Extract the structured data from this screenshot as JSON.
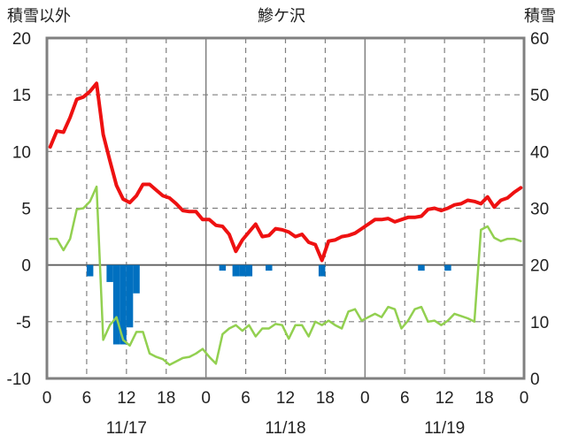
{
  "chart_data": {
    "type": "line",
    "title": "鰺ケ沢",
    "left_axis_label": "積雪以外",
    "right_axis_label": "積雪",
    "left_range": [
      -10,
      20
    ],
    "left_ticks": [
      "20",
      "15",
      "10",
      "5",
      "0",
      "-5",
      "-10"
    ],
    "right_range": [
      0,
      60
    ],
    "right_ticks": [
      "60",
      "50",
      "40",
      "30",
      "20",
      "10",
      "0"
    ],
    "x_hour_labels": [
      "0",
      "6",
      "12",
      "18",
      "0",
      "6",
      "12",
      "18",
      "0",
      "6",
      "12",
      "18",
      "0"
    ],
    "x_date_labels": [
      "11/17",
      "11/18",
      "11/19"
    ],
    "grid": true,
    "colors": {
      "temperature": "#ee1111",
      "green_series": "#92d050",
      "bars": "#0070c0",
      "snow": "#7030a0",
      "frame": "#808080",
      "grid": "#808080"
    },
    "series": [
      {
        "key": "temperature",
        "axis": "left",
        "values": [
          10.4,
          11.8,
          11.7,
          13.0,
          14.6,
          14.8,
          15.3,
          16.0,
          11.5,
          9.2,
          7.0,
          5.8,
          5.5,
          6.1,
          7.1,
          7.1,
          6.6,
          6.1,
          5.9,
          5.4,
          4.8,
          4.7,
          4.7,
          4.0,
          4.0,
          3.5,
          3.4,
          2.7,
          1.2,
          2.2,
          2.9,
          3.6,
          2.5,
          2.6,
          3.2,
          3.1,
          2.9,
          2.5,
          2.7,
          2.0,
          1.8,
          0.4,
          2.1,
          2.2,
          2.5,
          2.6,
          2.8,
          3.2,
          3.6,
          4.0,
          4.0,
          4.1,
          3.8,
          4.0,
          4.2,
          4.2,
          4.3,
          4.9,
          5.0,
          4.8,
          5.0,
          5.3,
          5.4,
          5.7,
          5.6,
          5.4,
          6.0,
          5.1,
          5.7,
          5.9,
          6.4,
          6.8
        ]
      },
      {
        "key": "green_series",
        "axis": "left",
        "values": [
          2.3,
          2.3,
          1.3,
          2.3,
          4.9,
          5.0,
          5.6,
          6.9,
          -6.6,
          -5.3,
          -4.6,
          -6.6,
          -7.1,
          -5.9,
          -5.9,
          -7.8,
          -8.1,
          -8.3,
          -8.8,
          -8.5,
          -8.2,
          -8.1,
          -7.8,
          -7.4,
          -8.1,
          -8.7,
          -6.1,
          -5.6,
          -5.3,
          -5.8,
          -5.3,
          -6.3,
          -5.6,
          -5.6,
          -5.2,
          -5.3,
          -6.5,
          -5.3,
          -5.3,
          -6.3,
          -5.0,
          -5.3,
          -4.9,
          -5.3,
          -5.6,
          -4.1,
          -3.9,
          -4.9,
          -4.6,
          -4.3,
          -4.6,
          -3.7,
          -3.9,
          -5.6,
          -4.9,
          -3.9,
          -3.7,
          -5.0,
          -4.9,
          -5.3,
          -4.9,
          -4.3,
          -4.5,
          -4.7,
          -5.0,
          3.1,
          3.4,
          2.4,
          2.1,
          2.3,
          2.3,
          2.1
        ]
      },
      {
        "key": "snow",
        "axis": "right",
        "values": [
          0,
          0,
          0,
          0,
          0,
          0,
          0,
          0,
          0,
          0,
          0,
          0,
          0,
          0,
          0,
          0,
          0,
          0,
          0,
          0,
          0,
          0,
          0,
          0,
          0,
          0,
          0,
          0,
          0,
          0,
          0,
          0,
          0,
          0,
          0,
          0,
          0,
          0,
          0,
          0,
          0,
          0,
          0,
          0,
          0,
          0,
          0,
          0,
          0,
          0,
          0,
          0,
          0,
          0,
          0,
          0,
          0,
          0,
          0,
          0,
          0,
          0,
          0,
          0,
          0,
          0,
          0,
          0,
          0,
          0,
          0,
          0
        ]
      }
    ],
    "bars": {
      "key": "bars",
      "axis": "left",
      "values": [
        0,
        0,
        0,
        0,
        0,
        0,
        -1.0,
        0,
        0,
        -1.5,
        -7.0,
        -7.0,
        -5.5,
        -2.5,
        0,
        0,
        0,
        0,
        0,
        0,
        0,
        0,
        0,
        0,
        0,
        0,
        -0.5,
        0,
        -1.0,
        -1.0,
        -1.0,
        0,
        0,
        -0.5,
        0,
        0,
        0,
        0,
        0,
        0,
        0,
        -1.0,
        0,
        0,
        0,
        0,
        0,
        0,
        0,
        0,
        0,
        0,
        0,
        0,
        0,
        0,
        -0.5,
        0,
        0,
        0,
        -0.5,
        0,
        0,
        0,
        0,
        0,
        0,
        0,
        0,
        0,
        0,
        0
      ]
    }
  }
}
